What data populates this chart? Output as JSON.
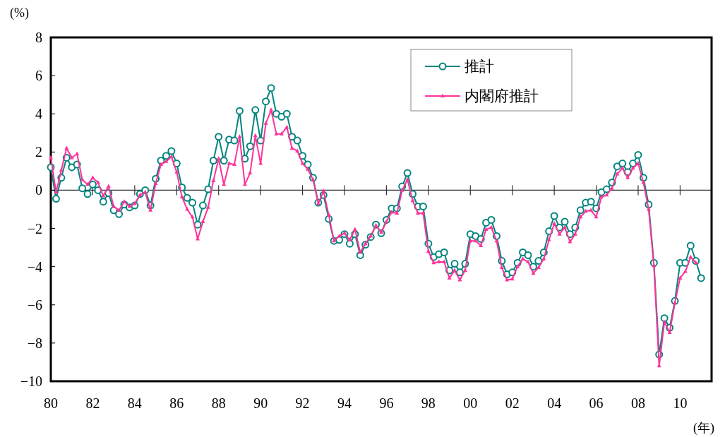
{
  "chart_data": {
    "type": "line",
    "ylabel": "(%)",
    "xlabel": "(年)",
    "x": [
      1980,
      1980.25,
      1980.5,
      1980.75,
      1981,
      1981.25,
      1981.5,
      1981.75,
      1982,
      1982.25,
      1982.5,
      1982.75,
      1983,
      1983.25,
      1983.5,
      1983.75,
      1984,
      1984.25,
      1984.5,
      1984.75,
      1985,
      1985.25,
      1985.5,
      1985.75,
      1986,
      1986.25,
      1986.5,
      1986.75,
      1987,
      1987.25,
      1987.5,
      1987.75,
      1988,
      1988.25,
      1988.5,
      1988.75,
      1989,
      1989.25,
      1989.5,
      1989.75,
      1990,
      1990.25,
      1990.5,
      1990.75,
      1991,
      1991.25,
      1991.5,
      1991.75,
      1992,
      1992.25,
      1992.5,
      1992.75,
      1993,
      1993.25,
      1993.5,
      1993.75,
      1994,
      1994.25,
      1994.5,
      1994.75,
      1995,
      1995.25,
      1995.5,
      1995.75,
      1996,
      1996.25,
      1996.5,
      1996.75,
      1997,
      1997.25,
      1997.5,
      1997.75,
      1998,
      1998.25,
      1998.5,
      1998.75,
      1999,
      1999.25,
      1999.5,
      1999.75,
      2000,
      2000.25,
      2000.5,
      2000.75,
      2001,
      2001.25,
      2001.5,
      2001.75,
      2002,
      2002.25,
      2002.5,
      2002.75,
      2003,
      2003.25,
      2003.5,
      2003.75,
      2004,
      2004.25,
      2004.5,
      2004.75,
      2005,
      2005.25,
      2005.5,
      2005.75,
      2006,
      2006.25,
      2006.5,
      2006.75,
      2007,
      2007.25,
      2007.5,
      2007.75,
      2008,
      2008.25,
      2008.5,
      2008.75,
      2009,
      2009.25,
      2009.5,
      2009.75,
      2010,
      2010.25,
      2010.5,
      2010.75,
      2011
    ],
    "series": [
      {
        "name": "推計",
        "color": "#00857f",
        "marker": "circle",
        "values": [
          1.2,
          -0.45,
          0.65,
          1.7,
          1.2,
          1.35,
          0.1,
          -0.2,
          0.3,
          0.0,
          -0.6,
          -0.15,
          -1.05,
          -1.25,
          -0.75,
          -0.9,
          -0.8,
          -0.2,
          0.0,
          -0.8,
          0.6,
          1.55,
          1.8,
          2.05,
          1.4,
          0.15,
          -0.4,
          -0.65,
          -1.8,
          -0.8,
          0.05,
          1.55,
          2.8,
          1.55,
          2.65,
          2.6,
          4.15,
          1.65,
          2.3,
          4.2,
          2.6,
          4.65,
          5.35,
          4.0,
          3.85,
          4.0,
          2.8,
          2.6,
          1.8,
          1.35,
          0.65,
          -0.65,
          -0.25,
          -1.5,
          -2.65,
          -2.6,
          -2.3,
          -2.8,
          -2.3,
          -3.4,
          -2.85,
          -2.45,
          -1.8,
          -2.25,
          -1.55,
          -0.95,
          -0.95,
          0.2,
          0.9,
          -0.2,
          -0.85,
          -0.85,
          -2.8,
          -3.5,
          -3.35,
          -3.25,
          -4.2,
          -3.85,
          -4.3,
          -3.85,
          -2.3,
          -2.4,
          -2.55,
          -1.7,
          -1.55,
          -2.4,
          -3.7,
          -4.4,
          -4.3,
          -3.8,
          -3.25,
          -3.4,
          -4.0,
          -3.7,
          -3.25,
          -2.15,
          -1.35,
          -1.95,
          -1.65,
          -2.3,
          -1.95,
          -1.05,
          -0.65,
          -0.6,
          -0.95,
          -0.1,
          0.05,
          0.4,
          1.25,
          1.4,
          0.95,
          1.4,
          1.85,
          0.65,
          -0.75,
          -3.8,
          -8.6,
          -6.7,
          -7.2,
          -5.8,
          -3.8,
          -3.8,
          -2.9,
          -3.7,
          -4.6
        ]
      },
      {
        "name": "内閣府推計",
        "color": "#ff3399",
        "marker": "triangle",
        "values": [
          1.7,
          -0.1,
          1.05,
          2.2,
          1.7,
          1.9,
          0.55,
          0.3,
          0.65,
          0.4,
          -0.3,
          0.2,
          -0.85,
          -1.05,
          -0.6,
          -0.85,
          -0.7,
          -0.25,
          -0.1,
          -1.05,
          0.35,
          1.35,
          1.5,
          1.75,
          0.95,
          -0.35,
          -1.0,
          -1.4,
          -2.55,
          -1.65,
          -0.9,
          0.5,
          1.65,
          0.3,
          1.4,
          1.35,
          2.8,
          0.3,
          0.9,
          2.85,
          1.4,
          3.5,
          4.2,
          2.95,
          2.95,
          3.3,
          2.2,
          2.05,
          1.4,
          1.1,
          0.55,
          -0.7,
          -0.05,
          -1.3,
          -2.65,
          -2.4,
          -2.25,
          -2.6,
          -2.05,
          -3.25,
          -2.8,
          -2.4,
          -1.85,
          -2.2,
          -1.65,
          -1.15,
          -1.2,
          0.0,
          0.55,
          -0.55,
          -1.2,
          -1.2,
          -3.2,
          -3.8,
          -3.75,
          -3.75,
          -4.6,
          -4.2,
          -4.7,
          -4.2,
          -2.65,
          -2.65,
          -2.9,
          -2.05,
          -1.95,
          -2.65,
          -4.05,
          -4.7,
          -4.65,
          -4.0,
          -3.6,
          -3.75,
          -4.35,
          -4.05,
          -3.6,
          -2.6,
          -1.75,
          -2.3,
          -1.95,
          -2.7,
          -2.3,
          -1.4,
          -1.1,
          -1.05,
          -1.4,
          -0.35,
          -0.25,
          0.1,
          0.85,
          1.15,
          0.65,
          1.15,
          1.4,
          0.4,
          -1.0,
          -3.95,
          -9.2,
          -6.9,
          -7.45,
          -5.9,
          -4.6,
          -4.25,
          -3.5,
          -3.8,
          null
        ]
      }
    ],
    "xlim": [
      1980,
      2011.5
    ],
    "xticks": [
      {
        "value": 1980,
        "label": "80"
      },
      {
        "value": 1982,
        "label": "82"
      },
      {
        "value": 1984,
        "label": "84"
      },
      {
        "value": 1986,
        "label": "86"
      },
      {
        "value": 1988,
        "label": "88"
      },
      {
        "value": 1990,
        "label": "90"
      },
      {
        "value": 1992,
        "label": "92"
      },
      {
        "value": 1994,
        "label": "94"
      },
      {
        "value": 1996,
        "label": "96"
      },
      {
        "value": 1998,
        "label": "98"
      },
      {
        "value": 2000,
        "label": "00"
      },
      {
        "value": 2002,
        "label": "02"
      },
      {
        "value": 2004,
        "label": "04"
      },
      {
        "value": 2006,
        "label": "06"
      },
      {
        "value": 2008,
        "label": "08"
      },
      {
        "value": 2010,
        "label": "10"
      }
    ],
    "ylim": [
      -10,
      8
    ],
    "yticks": [
      -10,
      -8,
      -6,
      -4,
      -2,
      0,
      2,
      4,
      6,
      8
    ],
    "ref_lines": [
      {
        "axis": "y",
        "value": 0
      }
    ],
    "legend": "top right",
    "grid": false,
    "line_style": "solid"
  }
}
